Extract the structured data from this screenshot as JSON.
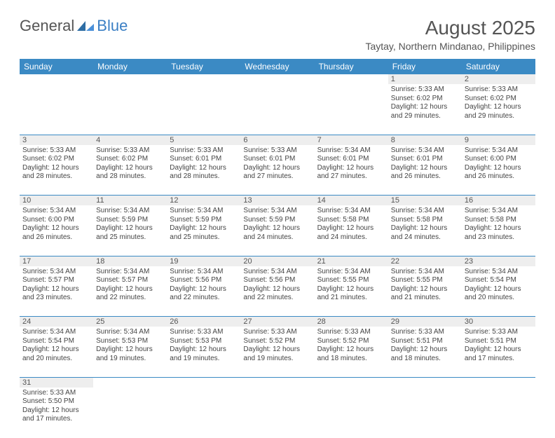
{
  "brand": {
    "part1": "General",
    "part2": "Blue"
  },
  "header": {
    "title": "August 2025",
    "location": "Taytay, Northern Mindanao, Philippines"
  },
  "colors": {
    "header_bg": "#3b8ac4",
    "header_fg": "#ffffff",
    "daynum_bg": "#eeeeee",
    "rule": "#3b8ac4"
  },
  "weekdays": [
    "Sunday",
    "Monday",
    "Tuesday",
    "Wednesday",
    "Thursday",
    "Friday",
    "Saturday"
  ],
  "weeks": [
    [
      null,
      null,
      null,
      null,
      null,
      {
        "n": "1",
        "sr": "Sunrise: 5:33 AM",
        "ss": "Sunset: 6:02 PM",
        "d1": "Daylight: 12 hours",
        "d2": "and 29 minutes."
      },
      {
        "n": "2",
        "sr": "Sunrise: 5:33 AM",
        "ss": "Sunset: 6:02 PM",
        "d1": "Daylight: 12 hours",
        "d2": "and 29 minutes."
      }
    ],
    [
      {
        "n": "3",
        "sr": "Sunrise: 5:33 AM",
        "ss": "Sunset: 6:02 PM",
        "d1": "Daylight: 12 hours",
        "d2": "and 28 minutes."
      },
      {
        "n": "4",
        "sr": "Sunrise: 5:33 AM",
        "ss": "Sunset: 6:02 PM",
        "d1": "Daylight: 12 hours",
        "d2": "and 28 minutes."
      },
      {
        "n": "5",
        "sr": "Sunrise: 5:33 AM",
        "ss": "Sunset: 6:01 PM",
        "d1": "Daylight: 12 hours",
        "d2": "and 28 minutes."
      },
      {
        "n": "6",
        "sr": "Sunrise: 5:33 AM",
        "ss": "Sunset: 6:01 PM",
        "d1": "Daylight: 12 hours",
        "d2": "and 27 minutes."
      },
      {
        "n": "7",
        "sr": "Sunrise: 5:34 AM",
        "ss": "Sunset: 6:01 PM",
        "d1": "Daylight: 12 hours",
        "d2": "and 27 minutes."
      },
      {
        "n": "8",
        "sr": "Sunrise: 5:34 AM",
        "ss": "Sunset: 6:01 PM",
        "d1": "Daylight: 12 hours",
        "d2": "and 26 minutes."
      },
      {
        "n": "9",
        "sr": "Sunrise: 5:34 AM",
        "ss": "Sunset: 6:00 PM",
        "d1": "Daylight: 12 hours",
        "d2": "and 26 minutes."
      }
    ],
    [
      {
        "n": "10",
        "sr": "Sunrise: 5:34 AM",
        "ss": "Sunset: 6:00 PM",
        "d1": "Daylight: 12 hours",
        "d2": "and 26 minutes."
      },
      {
        "n": "11",
        "sr": "Sunrise: 5:34 AM",
        "ss": "Sunset: 5:59 PM",
        "d1": "Daylight: 12 hours",
        "d2": "and 25 minutes."
      },
      {
        "n": "12",
        "sr": "Sunrise: 5:34 AM",
        "ss": "Sunset: 5:59 PM",
        "d1": "Daylight: 12 hours",
        "d2": "and 25 minutes."
      },
      {
        "n": "13",
        "sr": "Sunrise: 5:34 AM",
        "ss": "Sunset: 5:59 PM",
        "d1": "Daylight: 12 hours",
        "d2": "and 24 minutes."
      },
      {
        "n": "14",
        "sr": "Sunrise: 5:34 AM",
        "ss": "Sunset: 5:58 PM",
        "d1": "Daylight: 12 hours",
        "d2": "and 24 minutes."
      },
      {
        "n": "15",
        "sr": "Sunrise: 5:34 AM",
        "ss": "Sunset: 5:58 PM",
        "d1": "Daylight: 12 hours",
        "d2": "and 24 minutes."
      },
      {
        "n": "16",
        "sr": "Sunrise: 5:34 AM",
        "ss": "Sunset: 5:58 PM",
        "d1": "Daylight: 12 hours",
        "d2": "and 23 minutes."
      }
    ],
    [
      {
        "n": "17",
        "sr": "Sunrise: 5:34 AM",
        "ss": "Sunset: 5:57 PM",
        "d1": "Daylight: 12 hours",
        "d2": "and 23 minutes."
      },
      {
        "n": "18",
        "sr": "Sunrise: 5:34 AM",
        "ss": "Sunset: 5:57 PM",
        "d1": "Daylight: 12 hours",
        "d2": "and 22 minutes."
      },
      {
        "n": "19",
        "sr": "Sunrise: 5:34 AM",
        "ss": "Sunset: 5:56 PM",
        "d1": "Daylight: 12 hours",
        "d2": "and 22 minutes."
      },
      {
        "n": "20",
        "sr": "Sunrise: 5:34 AM",
        "ss": "Sunset: 5:56 PM",
        "d1": "Daylight: 12 hours",
        "d2": "and 22 minutes."
      },
      {
        "n": "21",
        "sr": "Sunrise: 5:34 AM",
        "ss": "Sunset: 5:55 PM",
        "d1": "Daylight: 12 hours",
        "d2": "and 21 minutes."
      },
      {
        "n": "22",
        "sr": "Sunrise: 5:34 AM",
        "ss": "Sunset: 5:55 PM",
        "d1": "Daylight: 12 hours",
        "d2": "and 21 minutes."
      },
      {
        "n": "23",
        "sr": "Sunrise: 5:34 AM",
        "ss": "Sunset: 5:54 PM",
        "d1": "Daylight: 12 hours",
        "d2": "and 20 minutes."
      }
    ],
    [
      {
        "n": "24",
        "sr": "Sunrise: 5:34 AM",
        "ss": "Sunset: 5:54 PM",
        "d1": "Daylight: 12 hours",
        "d2": "and 20 minutes."
      },
      {
        "n": "25",
        "sr": "Sunrise: 5:34 AM",
        "ss": "Sunset: 5:53 PM",
        "d1": "Daylight: 12 hours",
        "d2": "and 19 minutes."
      },
      {
        "n": "26",
        "sr": "Sunrise: 5:33 AM",
        "ss": "Sunset: 5:53 PM",
        "d1": "Daylight: 12 hours",
        "d2": "and 19 minutes."
      },
      {
        "n": "27",
        "sr": "Sunrise: 5:33 AM",
        "ss": "Sunset: 5:52 PM",
        "d1": "Daylight: 12 hours",
        "d2": "and 19 minutes."
      },
      {
        "n": "28",
        "sr": "Sunrise: 5:33 AM",
        "ss": "Sunset: 5:52 PM",
        "d1": "Daylight: 12 hours",
        "d2": "and 18 minutes."
      },
      {
        "n": "29",
        "sr": "Sunrise: 5:33 AM",
        "ss": "Sunset: 5:51 PM",
        "d1": "Daylight: 12 hours",
        "d2": "and 18 minutes."
      },
      {
        "n": "30",
        "sr": "Sunrise: 5:33 AM",
        "ss": "Sunset: 5:51 PM",
        "d1": "Daylight: 12 hours",
        "d2": "and 17 minutes."
      }
    ],
    [
      {
        "n": "31",
        "sr": "Sunrise: 5:33 AM",
        "ss": "Sunset: 5:50 PM",
        "d1": "Daylight: 12 hours",
        "d2": "and 17 minutes."
      },
      null,
      null,
      null,
      null,
      null,
      null
    ]
  ]
}
